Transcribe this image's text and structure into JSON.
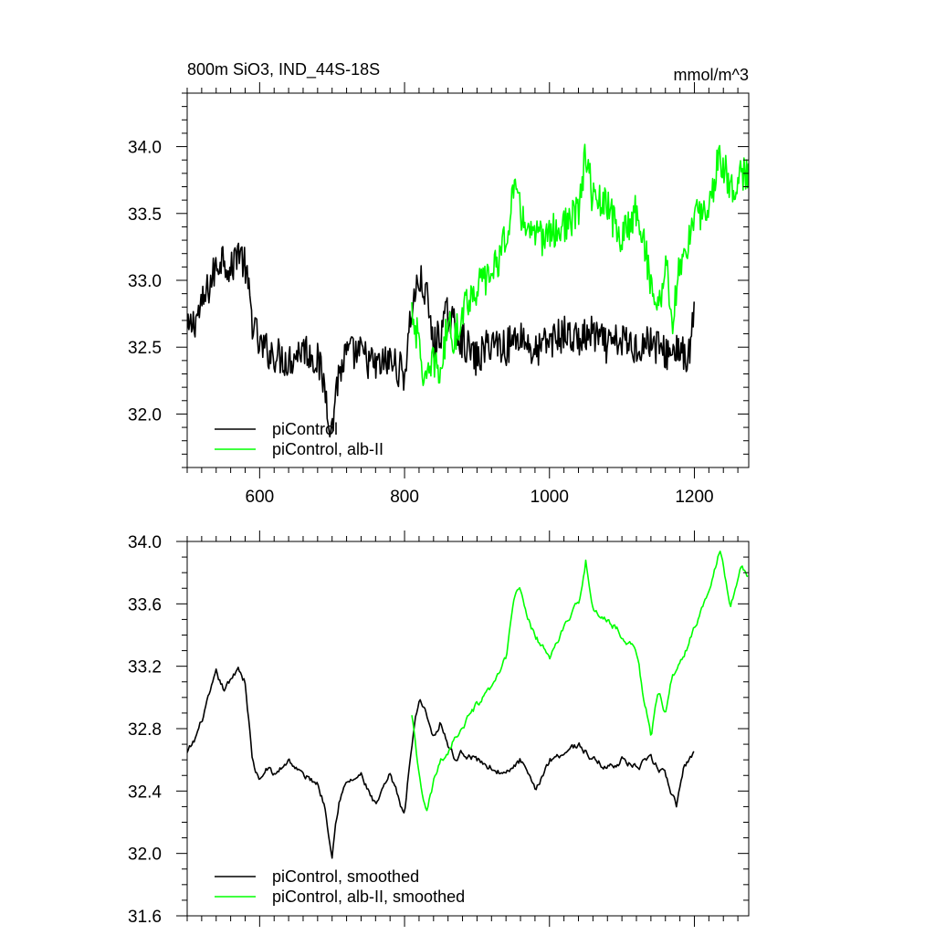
{
  "chart_data": [
    {
      "type": "line",
      "title": "800m SiO3, IND_44S-18S",
      "units": "mmol/m^3",
      "xlim": [
        500,
        1275
      ],
      "ylim": [
        31.6,
        34.4
      ],
      "xticks": [
        600,
        800,
        1000,
        1200
      ],
      "xtick_labels": [
        "600",
        "800",
        "1000",
        "1200"
      ],
      "yticks": [
        32.0,
        32.5,
        33.0,
        33.5,
        34.0
      ],
      "ytick_labels": [
        "32.0",
        "32.5",
        "33.0",
        "33.5",
        "34.0"
      ],
      "grid": false,
      "legend_placement": "bottom-left",
      "series": [
        {
          "name": "piControl",
          "color": "#000000",
          "x": [
            500,
            520,
            540,
            550,
            560,
            570,
            580,
            590,
            600,
            620,
            640,
            660,
            680,
            690,
            700,
            705,
            710,
            720,
            740,
            760,
            780,
            800,
            810,
            820,
            830,
            840,
            860,
            880,
            900,
            920,
            940,
            960,
            980,
            1000,
            1020,
            1040,
            1060,
            1080,
            1100,
            1120,
            1140,
            1160,
            1180,
            1190,
            1200
          ],
          "y": [
            32.6,
            32.8,
            33.1,
            33.2,
            33.05,
            33.25,
            33.1,
            32.7,
            32.5,
            32.45,
            32.4,
            32.5,
            32.4,
            32.2,
            31.85,
            32.2,
            32.3,
            32.45,
            32.45,
            32.35,
            32.4,
            32.3,
            32.8,
            33.0,
            32.9,
            32.5,
            32.75,
            32.55,
            32.4,
            32.55,
            32.5,
            32.6,
            32.45,
            32.55,
            32.6,
            32.55,
            32.6,
            32.5,
            32.55,
            32.5,
            32.55,
            32.45,
            32.5,
            32.35,
            32.75
          ]
        },
        {
          "name": "piControl, alb-II",
          "color": "#00ff00",
          "x": [
            810,
            820,
            830,
            840,
            850,
            860,
            870,
            880,
            900,
            920,
            940,
            950,
            960,
            980,
            1000,
            1020,
            1040,
            1050,
            1060,
            1080,
            1100,
            1120,
            1140,
            1150,
            1160,
            1170,
            1180,
            1200,
            1220,
            1235,
            1250,
            1260,
            1275
          ],
          "y": [
            32.8,
            32.5,
            32.2,
            32.4,
            32.3,
            32.7,
            32.55,
            32.8,
            32.95,
            33.05,
            33.3,
            33.7,
            33.5,
            33.3,
            33.35,
            33.4,
            33.5,
            33.95,
            33.6,
            33.55,
            33.3,
            33.55,
            33.0,
            32.75,
            33.15,
            32.7,
            33.1,
            33.45,
            33.55,
            33.95,
            33.7,
            33.75,
            33.8
          ]
        }
      ]
    },
    {
      "type": "line",
      "xlim": [
        500,
        1275
      ],
      "ylim": [
        31.6,
        34.0
      ],
      "xticks": [
        600,
        800,
        1000,
        1200
      ],
      "yticks": [
        31.6,
        32.0,
        32.4,
        32.8,
        33.2,
        33.6,
        34.0
      ],
      "ytick_labels": [
        "31.6",
        "32.0",
        "32.4",
        "32.8",
        "33.2",
        "33.6",
        "34.0"
      ],
      "grid": false,
      "legend_placement": "bottom-left",
      "series": [
        {
          "name": "piControl, smoothed",
          "color": "#000000",
          "x": [
            500,
            510,
            520,
            530,
            540,
            550,
            560,
            570,
            580,
            590,
            600,
            610,
            620,
            640,
            660,
            680,
            690,
            700,
            705,
            710,
            720,
            740,
            760,
            780,
            800,
            810,
            820,
            830,
            840,
            850,
            860,
            870,
            880,
            900,
            920,
            940,
            960,
            980,
            1000,
            1020,
            1040,
            1060,
            1080,
            1100,
            1120,
            1140,
            1160,
            1175,
            1185,
            1200
          ],
          "y": [
            32.64,
            32.72,
            32.85,
            33.0,
            33.15,
            33.05,
            33.1,
            33.2,
            33.1,
            32.6,
            32.45,
            32.55,
            32.5,
            32.6,
            32.5,
            32.45,
            32.3,
            32.0,
            32.2,
            32.35,
            32.45,
            32.5,
            32.3,
            32.5,
            32.25,
            32.7,
            33.0,
            32.9,
            32.75,
            32.85,
            32.7,
            32.6,
            32.65,
            32.6,
            32.55,
            32.5,
            32.6,
            32.4,
            32.6,
            32.65,
            32.7,
            32.6,
            32.55,
            32.6,
            32.55,
            32.6,
            32.5,
            32.3,
            32.55,
            32.65
          ]
        },
        {
          "name": "piControl, alb-II, smoothed",
          "color": "#00ff00",
          "x": [
            810,
            820,
            830,
            840,
            850,
            860,
            870,
            880,
            890,
            900,
            920,
            940,
            950,
            960,
            970,
            980,
            1000,
            1020,
            1040,
            1050,
            1060,
            1080,
            1100,
            1120,
            1130,
            1140,
            1150,
            1160,
            1170,
            1180,
            1200,
            1220,
            1235,
            1250,
            1265,
            1275
          ],
          "y": [
            32.88,
            32.5,
            32.25,
            32.45,
            32.6,
            32.65,
            32.75,
            32.8,
            32.88,
            32.95,
            33.05,
            33.25,
            33.62,
            33.7,
            33.5,
            33.4,
            33.25,
            33.45,
            33.6,
            33.88,
            33.55,
            33.5,
            33.4,
            33.3,
            33.0,
            32.75,
            33.05,
            32.9,
            33.15,
            33.2,
            33.45,
            33.7,
            33.95,
            33.6,
            33.85,
            33.75
          ]
        }
      ]
    }
  ]
}
